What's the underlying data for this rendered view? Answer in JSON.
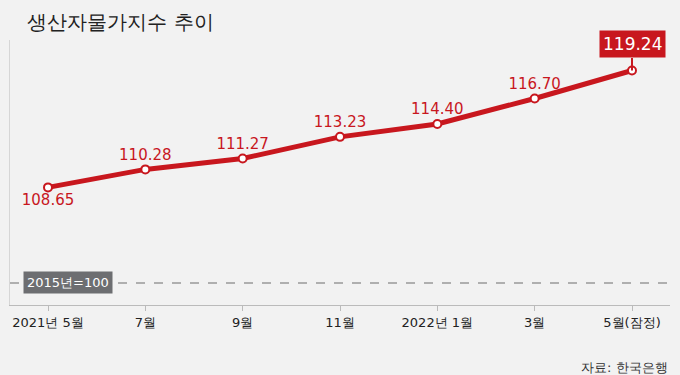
{
  "chart_data": {
    "type": "line",
    "title": "생산자물가지수 추이",
    "categories": [
      "2021년 5월",
      "7월",
      "9월",
      "11월",
      "2022년 1월",
      "3월",
      "5월(잠정)"
    ],
    "values": [
      108.65,
      110.28,
      111.27,
      113.23,
      114.4,
      116.7,
      119.24
    ],
    "value_labels": [
      "108.65",
      "110.28",
      "111.27",
      "113.23",
      "114.40",
      "116.70",
      "119.24"
    ],
    "color": "#c8171e",
    "marker": "circle",
    "line_style": "solid",
    "ylim": [
      98,
      122
    ],
    "yticks": [],
    "tick_labels": "x",
    "grid": false,
    "data_labels": true,
    "reference_line": {
      "value": 100,
      "label": "2015년=100",
      "line_style": "dashed"
    },
    "source": "자료: 한국은행"
  }
}
